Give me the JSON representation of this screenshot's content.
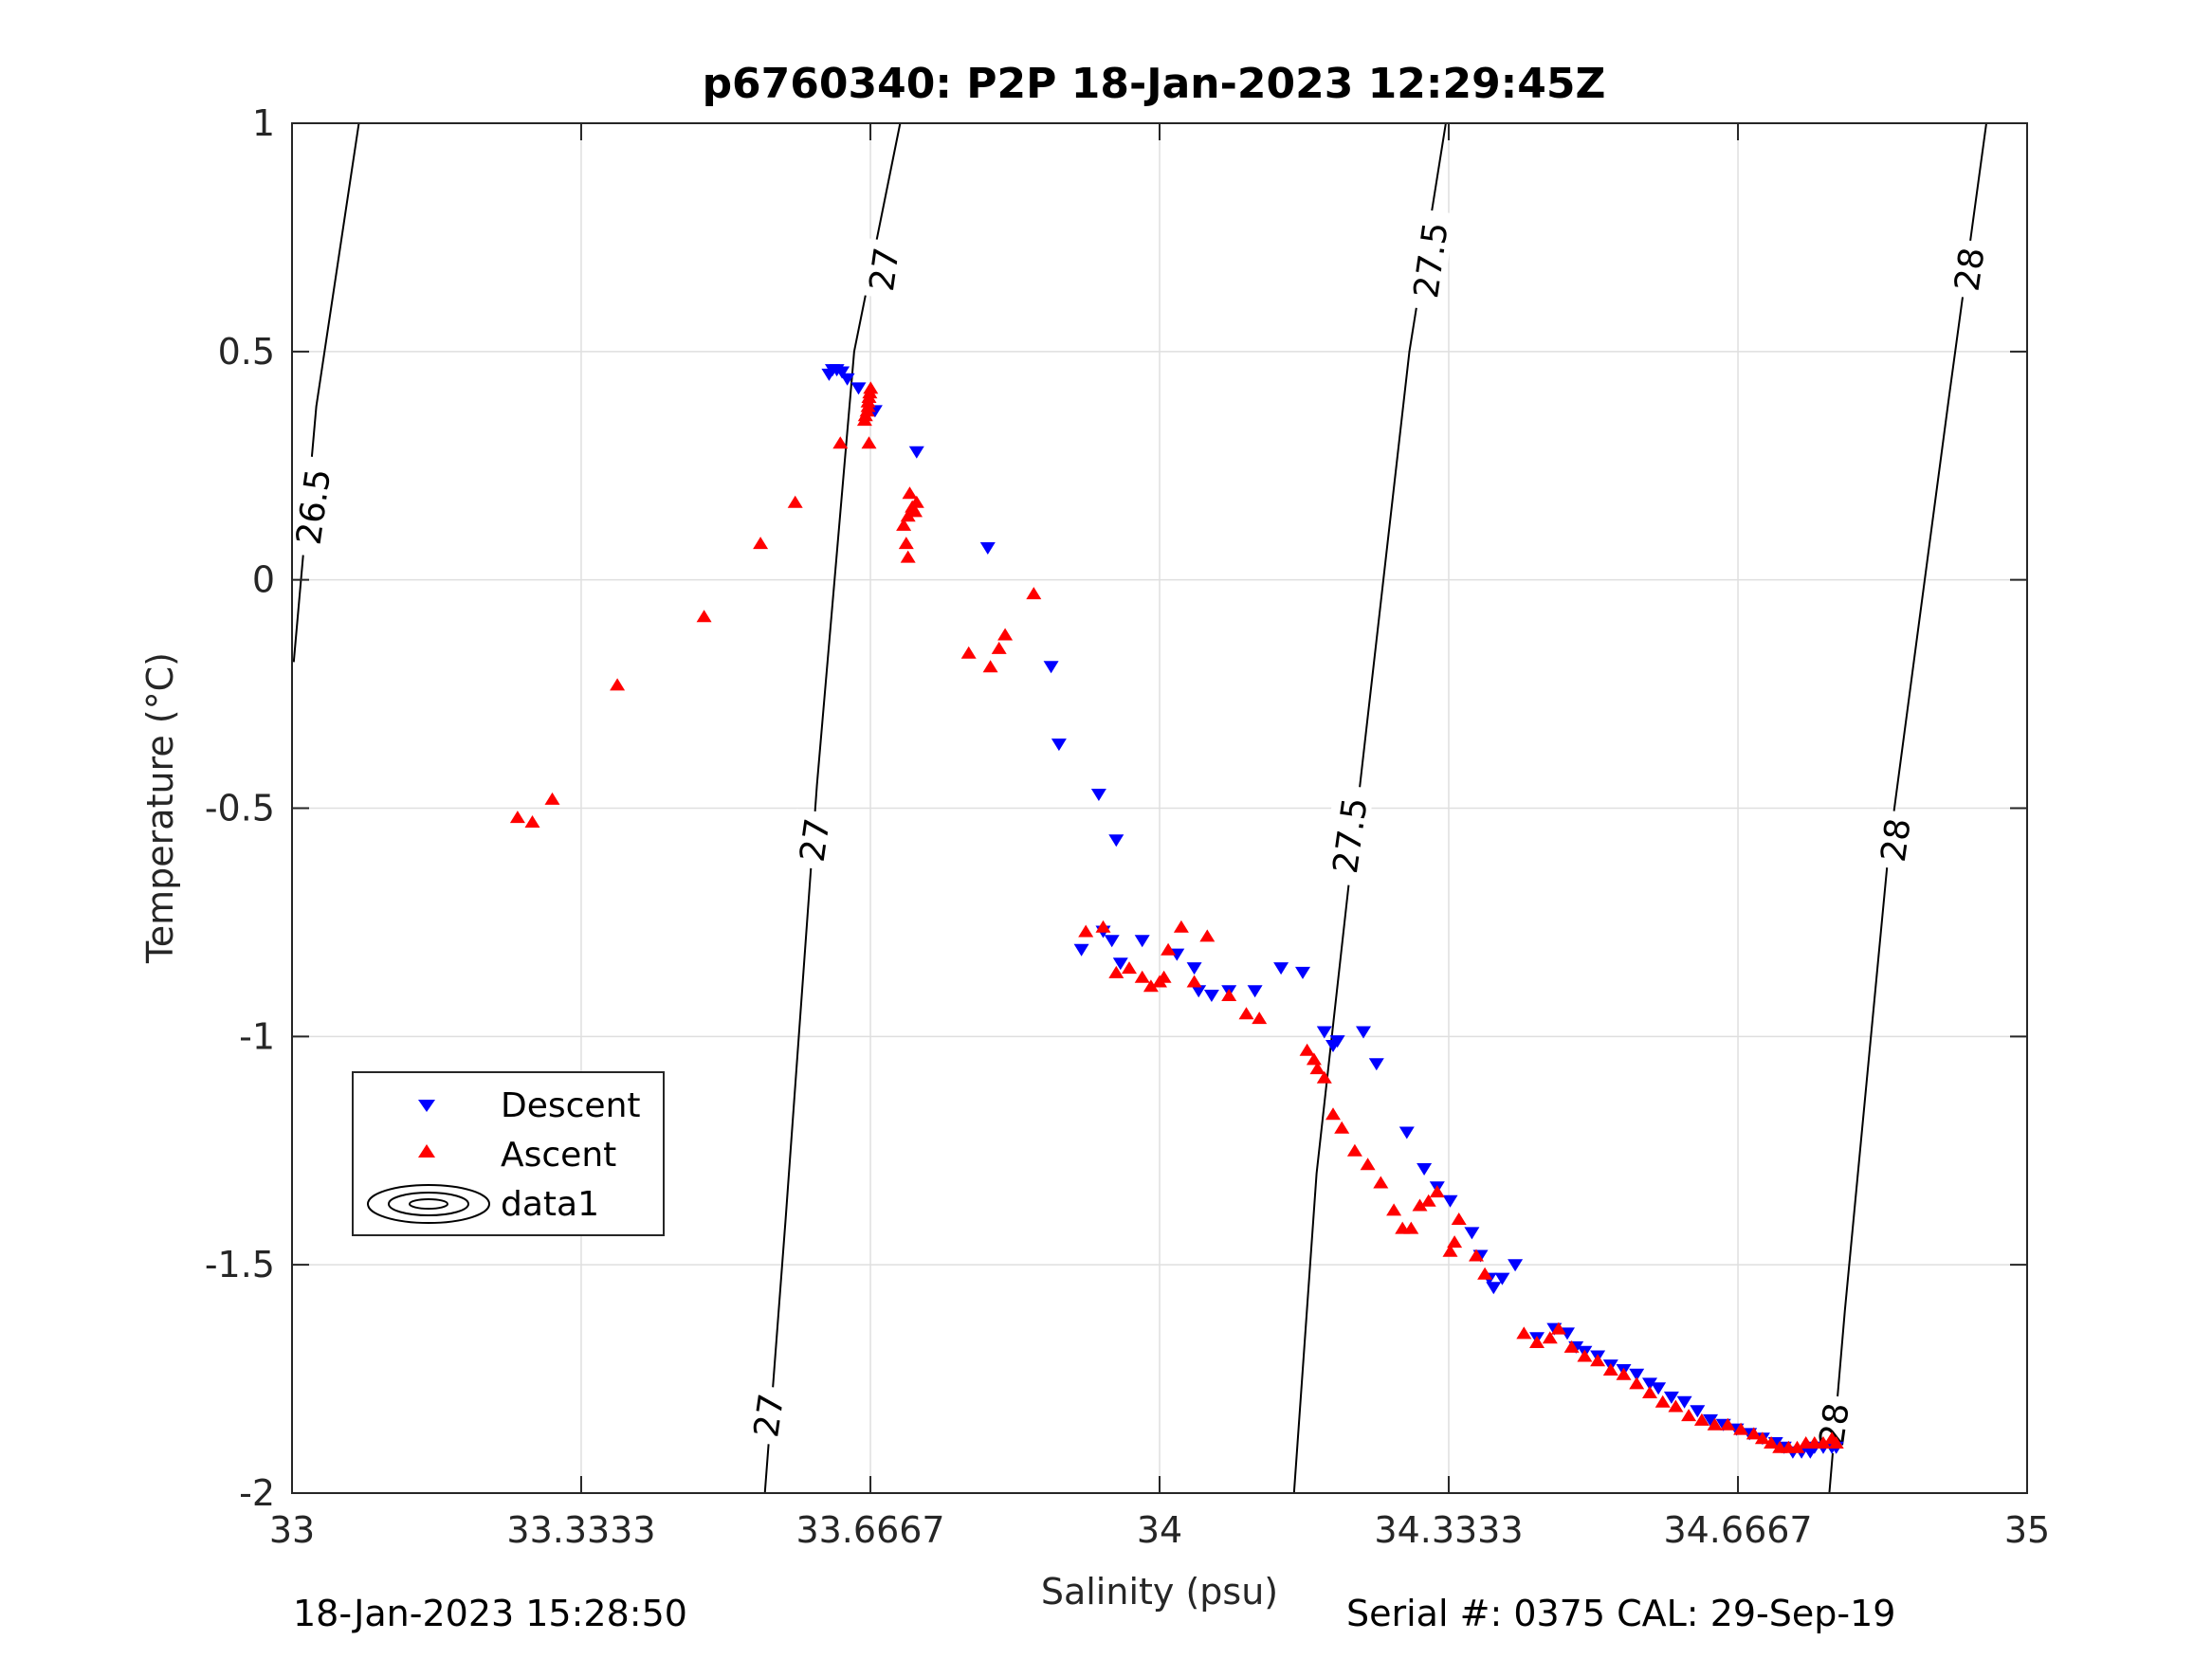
{
  "chart_data": {
    "type": "scatter",
    "title": "p6760340: P2P 18-Jan-2023 12:29:45Z",
    "xlabel": "Salinity (psu)",
    "ylabel": "Temperature (°C)",
    "xlim": [
      33,
      35
    ],
    "ylim": [
      -2,
      1
    ],
    "x_ticks": [
      33,
      33.3333,
      33.6667,
      34,
      34.3333,
      34.6667,
      35
    ],
    "x_tick_labels": [
      "33",
      "33.3333",
      "33.6667",
      "34",
      "34.3333",
      "34.6667",
      "35"
    ],
    "y_ticks": [
      1,
      0.5,
      0,
      -0.5,
      -1,
      -1.5,
      -2
    ],
    "y_tick_labels": [
      "1",
      "0.5",
      "0",
      "-0.5",
      "-1",
      "-1.5",
      "-2"
    ],
    "grid": true,
    "legend_position": "lower-left",
    "series": [
      {
        "name": "Descent",
        "marker": "triangle-down",
        "color": "#0000ff",
        "points": [
          [
            33.619,
            0.45
          ],
          [
            33.623,
            0.46
          ],
          [
            33.628,
            0.46
          ],
          [
            33.634,
            0.455
          ],
          [
            33.64,
            0.44
          ],
          [
            33.653,
            0.42
          ],
          [
            33.672,
            0.37
          ],
          [
            33.72,
            0.28
          ],
          [
            33.802,
            0.07
          ],
          [
            33.875,
            -0.19
          ],
          [
            33.884,
            -0.36
          ],
          [
            33.93,
            -0.47
          ],
          [
            33.95,
            -0.57
          ],
          [
            33.91,
            -0.81
          ],
          [
            33.935,
            -0.77
          ],
          [
            33.945,
            -0.79
          ],
          [
            33.955,
            -0.84
          ],
          [
            33.98,
            -0.79
          ],
          [
            34.02,
            -0.82
          ],
          [
            34.04,
            -0.85
          ],
          [
            34.045,
            -0.9
          ],
          [
            34.06,
            -0.91
          ],
          [
            34.08,
            -0.9
          ],
          [
            34.11,
            -0.9
          ],
          [
            34.14,
            -0.85
          ],
          [
            34.165,
            -0.86
          ],
          [
            34.19,
            -0.99
          ],
          [
            34.2,
            -1.02
          ],
          [
            34.205,
            -1.01
          ],
          [
            34.235,
            -0.99
          ],
          [
            34.25,
            -1.06
          ],
          [
            34.285,
            -1.21
          ],
          [
            34.305,
            -1.29
          ],
          [
            34.32,
            -1.33
          ],
          [
            34.335,
            -1.36
          ],
          [
            34.36,
            -1.43
          ],
          [
            34.37,
            -1.48
          ],
          [
            34.38,
            -1.53
          ],
          [
            34.385,
            -1.55
          ],
          [
            34.395,
            -1.53
          ],
          [
            34.41,
            -1.5
          ],
          [
            34.435,
            -1.66
          ],
          [
            34.455,
            -1.64
          ],
          [
            34.47,
            -1.65
          ],
          [
            34.48,
            -1.68
          ],
          [
            34.49,
            -1.69
          ],
          [
            34.505,
            -1.7
          ],
          [
            34.52,
            -1.72
          ],
          [
            34.535,
            -1.73
          ],
          [
            34.55,
            -1.74
          ],
          [
            34.565,
            -1.76
          ],
          [
            34.575,
            -1.77
          ],
          [
            34.59,
            -1.79
          ],
          [
            34.605,
            -1.8
          ],
          [
            34.62,
            -1.82
          ],
          [
            34.635,
            -1.84
          ],
          [
            34.65,
            -1.85
          ],
          [
            34.665,
            -1.86
          ],
          [
            34.68,
            -1.87
          ],
          [
            34.695,
            -1.88
          ],
          [
            34.71,
            -1.89
          ],
          [
            34.72,
            -1.9
          ],
          [
            34.73,
            -1.91
          ],
          [
            34.74,
            -1.91
          ],
          [
            34.75,
            -1.91
          ],
          [
            34.755,
            -1.9
          ],
          [
            34.765,
            -1.9
          ],
          [
            34.775,
            -1.9
          ],
          [
            34.78,
            -1.9
          ]
        ]
      },
      {
        "name": "Ascent",
        "marker": "triangle-up",
        "color": "#ff0000",
        "points": [
          [
            33.26,
            -0.52
          ],
          [
            33.277,
            -0.53
          ],
          [
            33.3,
            -0.48
          ],
          [
            33.375,
            -0.23
          ],
          [
            33.475,
            -0.08
          ],
          [
            33.54,
            0.08
          ],
          [
            33.58,
            0.17
          ],
          [
            33.632,
            0.3
          ],
          [
            33.665,
            0.3
          ],
          [
            33.66,
            0.35
          ],
          [
            33.661,
            0.36
          ],
          [
            33.663,
            0.37
          ],
          [
            33.664,
            0.38
          ],
          [
            33.664,
            0.39
          ],
          [
            33.665,
            0.4
          ],
          [
            33.666,
            0.41
          ],
          [
            33.667,
            0.42
          ],
          [
            33.705,
            0.12
          ],
          [
            33.708,
            0.08
          ],
          [
            33.71,
            0.05
          ],
          [
            33.71,
            0.14
          ],
          [
            33.712,
            0.19
          ],
          [
            33.715,
            0.16
          ],
          [
            33.718,
            0.15
          ],
          [
            33.72,
            0.17
          ],
          [
            33.78,
            -0.16
          ],
          [
            33.805,
            -0.19
          ],
          [
            33.815,
            -0.15
          ],
          [
            33.822,
            -0.12
          ],
          [
            33.855,
            -0.03
          ],
          [
            33.915,
            -0.77
          ],
          [
            33.935,
            -0.76
          ],
          [
            33.95,
            -0.86
          ],
          [
            33.965,
            -0.85
          ],
          [
            33.98,
            -0.87
          ],
          [
            33.99,
            -0.89
          ],
          [
            34,
            -0.88
          ],
          [
            34.005,
            -0.87
          ],
          [
            34.01,
            -0.81
          ],
          [
            34.025,
            -0.76
          ],
          [
            34.04,
            -0.88
          ],
          [
            34.055,
            -0.78
          ],
          [
            34.08,
            -0.91
          ],
          [
            34.1,
            -0.95
          ],
          [
            34.115,
            -0.96
          ],
          [
            34.17,
            -1.03
          ],
          [
            34.178,
            -1.05
          ],
          [
            34.182,
            -1.07
          ],
          [
            34.19,
            -1.09
          ],
          [
            34.2,
            -1.17
          ],
          [
            34.21,
            -1.2
          ],
          [
            34.225,
            -1.25
          ],
          [
            34.24,
            -1.28
          ],
          [
            34.255,
            -1.32
          ],
          [
            34.27,
            -1.38
          ],
          [
            34.28,
            -1.42
          ],
          [
            34.29,
            -1.42
          ],
          [
            34.3,
            -1.37
          ],
          [
            34.31,
            -1.36
          ],
          [
            34.32,
            -1.34
          ],
          [
            34.335,
            -1.47
          ],
          [
            34.34,
            -1.45
          ],
          [
            34.345,
            -1.4
          ],
          [
            34.365,
            -1.48
          ],
          [
            34.375,
            -1.52
          ],
          [
            34.42,
            -1.65
          ],
          [
            34.435,
            -1.67
          ],
          [
            34.45,
            -1.66
          ],
          [
            34.46,
            -1.64
          ],
          [
            34.475,
            -1.68
          ],
          [
            34.49,
            -1.7
          ],
          [
            34.505,
            -1.71
          ],
          [
            34.52,
            -1.73
          ],
          [
            34.535,
            -1.74
          ],
          [
            34.55,
            -1.76
          ],
          [
            34.565,
            -1.78
          ],
          [
            34.58,
            -1.8
          ],
          [
            34.595,
            -1.81
          ],
          [
            34.61,
            -1.83
          ],
          [
            34.625,
            -1.84
          ],
          [
            34.64,
            -1.85
          ],
          [
            34.655,
            -1.85
          ],
          [
            34.67,
            -1.86
          ],
          [
            34.685,
            -1.87
          ],
          [
            34.695,
            -1.88
          ],
          [
            34.705,
            -1.89
          ],
          [
            34.715,
            -1.9
          ],
          [
            34.725,
            -1.9
          ],
          [
            34.735,
            -1.9
          ],
          [
            34.745,
            -1.89
          ],
          [
            34.755,
            -1.89
          ],
          [
            34.765,
            -1.89
          ],
          [
            34.775,
            -1.88
          ],
          [
            34.78,
            -1.89
          ]
        ]
      }
    ],
    "contour_legend_label": "data1",
    "contours": [
      {
        "label": "26.5",
        "line": [
          [
            33.002,
            -0.18
          ],
          [
            33.028,
            0.38
          ],
          [
            33.077,
            1
          ]
        ],
        "labels_at": [
          [
            33.025,
            0.16
          ]
        ]
      },
      {
        "label": "27",
        "line": [
          [
            33.545,
            -2
          ],
          [
            33.569,
            -1.4
          ],
          [
            33.605,
            -0.45
          ],
          [
            33.648,
            0.5
          ],
          [
            33.701,
            1
          ]
        ],
        "labels_at": [
          [
            33.55,
            -1.83
          ],
          [
            33.603,
            -0.57
          ],
          [
            33.683,
            0.68
          ]
        ]
      },
      {
        "label": "27.5",
        "line": [
          [
            34.155,
            -2
          ],
          [
            34.181,
            -1.3
          ],
          [
            34.222,
            -0.6
          ],
          [
            34.288,
            0.5
          ],
          [
            34.33,
            1
          ]
        ],
        "labels_at": [
          [
            34.22,
            -0.56
          ],
          [
            34.313,
            0.7
          ]
        ]
      },
      {
        "label": "28",
        "line": [
          [
            34.772,
            -2
          ],
          [
            34.79,
            -1.6
          ],
          [
            34.84,
            -0.6
          ],
          [
            34.91,
            0.4
          ],
          [
            34.953,
            1
          ]
        ],
        "labels_at": [
          [
            34.778,
            -1.85
          ],
          [
            34.849,
            -0.57
          ],
          [
            34.934,
            0.68
          ]
        ]
      }
    ]
  },
  "footer": {
    "timestamp": "18-Jan-2023 15:28:50",
    "serial": "Serial #: 0375  CAL: 29-Sep-19"
  }
}
